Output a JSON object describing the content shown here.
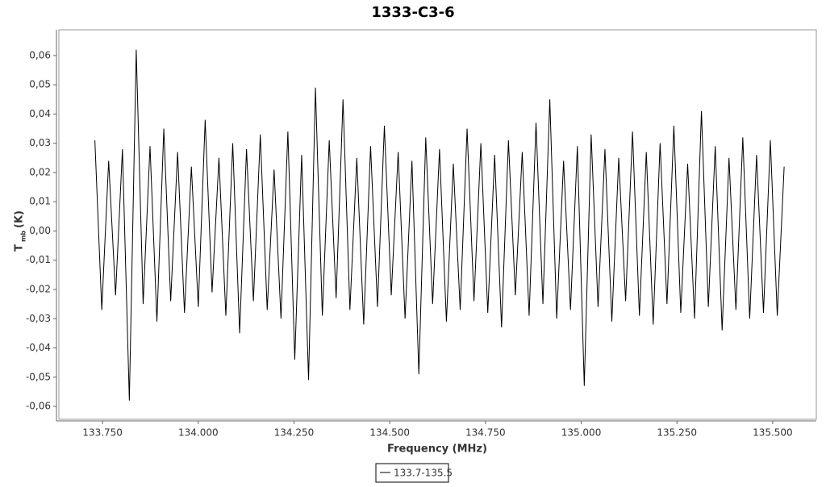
{
  "chart_data": {
    "type": "line",
    "title": "1333-C3-6",
    "x_label": "Frequency (MHz)",
    "y_label": {
      "symbol": "T",
      "subscript": "mb",
      "unit": "(K)"
    },
    "x": [
      133.73,
      133.748,
      133.766,
      133.784,
      133.802,
      133.82,
      133.838,
      133.856,
      133.874,
      133.892,
      133.91,
      133.928,
      133.946,
      133.964,
      133.982,
      134.0,
      134.018,
      134.036,
      134.054,
      134.072,
      134.09,
      134.108,
      134.126,
      134.144,
      134.162,
      134.18,
      134.198,
      134.216,
      134.234,
      134.252,
      134.27,
      134.288,
      134.306,
      134.324,
      134.342,
      134.36,
      134.378,
      134.396,
      134.414,
      134.432,
      134.45,
      134.468,
      134.486,
      134.504,
      134.522,
      134.54,
      134.558,
      134.576,
      134.594,
      134.612,
      134.63,
      134.648,
      134.666,
      134.684,
      134.702,
      134.72,
      134.738,
      134.756,
      134.774,
      134.792,
      134.81,
      134.828,
      134.846,
      134.864,
      134.882,
      134.9,
      134.918,
      134.936,
      134.954,
      134.972,
      134.99,
      135.008,
      135.026,
      135.044,
      135.062,
      135.08,
      135.098,
      135.116,
      135.134,
      135.152,
      135.17,
      135.188,
      135.206,
      135.224,
      135.242,
      135.26,
      135.278,
      135.296,
      135.314,
      135.332,
      135.35,
      135.368,
      135.386,
      135.404,
      135.422,
      135.44,
      135.458,
      135.476,
      135.494,
      135.512,
      135.53
    ],
    "series": [
      {
        "name": "133.7-135.5",
        "color": "#000000",
        "values": [
          0.031,
          -0.027,
          0.024,
          -0.022,
          0.028,
          -0.058,
          0.062,
          -0.025,
          0.029,
          -0.031,
          0.035,
          -0.024,
          0.027,
          -0.028,
          0.022,
          -0.026,
          0.038,
          -0.021,
          0.025,
          -0.029,
          0.03,
          -0.035,
          0.028,
          -0.024,
          0.033,
          -0.027,
          0.021,
          -0.03,
          0.034,
          -0.044,
          0.026,
          -0.051,
          0.049,
          -0.029,
          0.031,
          -0.023,
          0.045,
          -0.027,
          0.025,
          -0.032,
          0.029,
          -0.026,
          0.036,
          -0.022,
          0.027,
          -0.03,
          0.024,
          -0.049,
          0.032,
          -0.025,
          0.028,
          -0.031,
          0.023,
          -0.027,
          0.035,
          -0.024,
          0.03,
          -0.028,
          0.026,
          -0.033,
          0.031,
          -0.022,
          0.027,
          -0.029,
          0.037,
          -0.025,
          0.045,
          -0.03,
          0.024,
          -0.027,
          0.029,
          -0.053,
          0.033,
          -0.026,
          0.028,
          -0.031,
          0.025,
          -0.024,
          0.034,
          -0.029,
          0.027,
          -0.032,
          0.03,
          -0.025,
          0.036,
          -0.028,
          0.023,
          -0.03,
          0.041,
          -0.026,
          0.029,
          -0.034,
          0.025,
          -0.027,
          0.032,
          -0.03,
          0.026,
          -0.028,
          0.031,
          -0.029,
          0.022
        ]
      }
    ],
    "xlim": [
      133.636,
      135.614
    ],
    "ylim": [
      -0.0644,
      0.0688
    ],
    "xticks": [
      {
        "value": 133.75,
        "label": "133.750"
      },
      {
        "value": 134.0,
        "label": "134.000"
      },
      {
        "value": 134.25,
        "label": "134.250"
      },
      {
        "value": 134.5,
        "label": "134.500"
      },
      {
        "value": 134.75,
        "label": "134.750"
      },
      {
        "value": 135.0,
        "label": "135.000"
      },
      {
        "value": 135.25,
        "label": "135.250"
      },
      {
        "value": 135.5,
        "label": "135.500"
      }
    ],
    "yticks": [
      {
        "value": -0.06,
        "label": "-0,06"
      },
      {
        "value": -0.05,
        "label": "-0,05"
      },
      {
        "value": -0.04,
        "label": "-0,04"
      },
      {
        "value": -0.03,
        "label": "-0,03"
      },
      {
        "value": -0.02,
        "label": "-0,02"
      },
      {
        "value": -0.01,
        "label": "-0,01"
      },
      {
        "value": 0,
        "label": "0,00"
      },
      {
        "value": 0.01,
        "label": "0,01"
      },
      {
        "value": 0.02,
        "label": "0,02"
      },
      {
        "value": 0.03,
        "label": "0,03"
      },
      {
        "value": 0.04,
        "label": "0,04"
      },
      {
        "value": 0.05,
        "label": "0,05"
      },
      {
        "value": 0.06,
        "label": "0,06"
      }
    ],
    "grid": false,
    "legend": "bottom"
  }
}
